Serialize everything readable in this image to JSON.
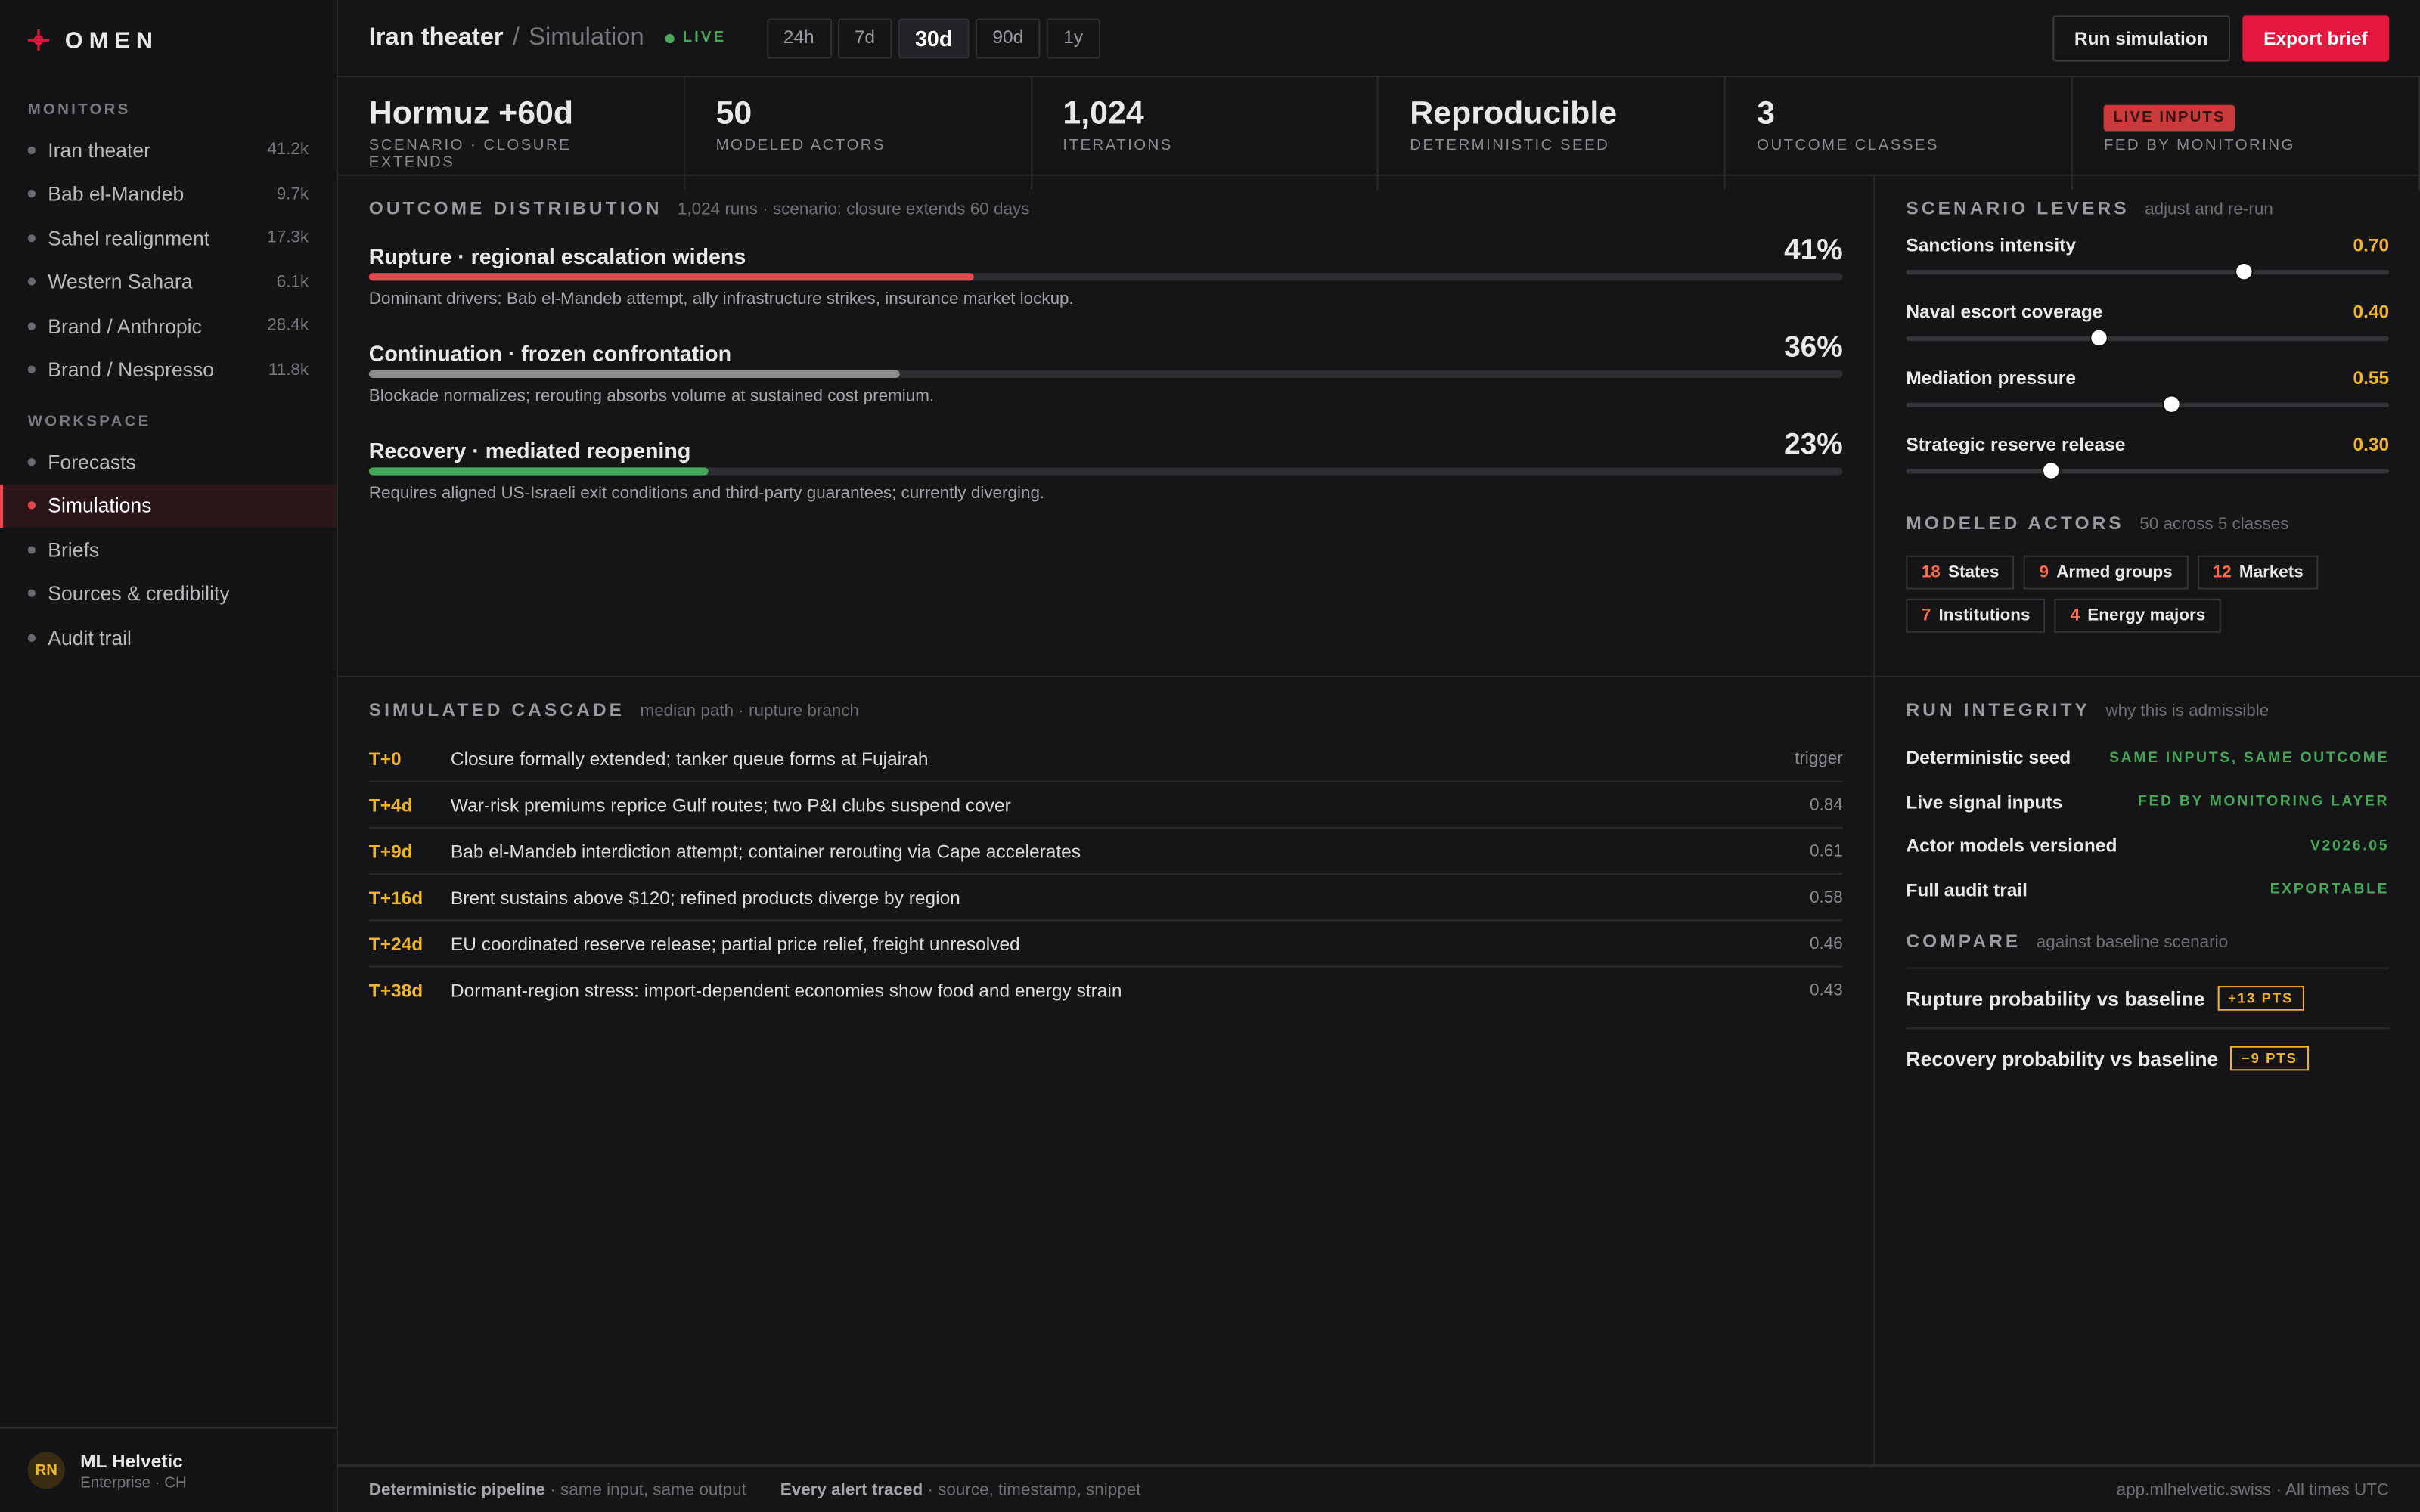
{
  "sidebar": {
    "brand": "OMEN",
    "sections": [
      {
        "title": "MONITORS",
        "items": [
          {
            "label": "Iran theater",
            "count": "41.2k"
          },
          {
            "label": "Bab el-Mandeb",
            "count": "9.7k"
          },
          {
            "label": "Sahel realignment",
            "count": "17.3k"
          },
          {
            "label": "Western Sahara",
            "count": "6.1k"
          },
          {
            "label": "Brand / Anthropic",
            "count": "28.4k"
          },
          {
            "label": "Brand / Nespresso",
            "count": "11.8k"
          }
        ]
      },
      {
        "title": "WORKSPACE",
        "items": [
          {
            "label": "Forecasts"
          },
          {
            "label": "Simulations",
            "active": true
          },
          {
            "label": "Briefs"
          },
          {
            "label": "Sources & credibility"
          },
          {
            "label": "Audit trail"
          }
        ]
      }
    ],
    "user": {
      "initials": "RN",
      "name": "ML Helvetic",
      "org": "Enterprise · CH"
    }
  },
  "header": {
    "title": "Iran theater",
    "separator": "/",
    "subtitle": "Simulation",
    "status": "LIVE",
    "ranges": [
      "24h",
      "7d",
      "30d",
      "90d",
      "1y"
    ],
    "active_range": 2,
    "actions": [
      "Run simulation",
      "Export brief"
    ]
  },
  "kpis": [
    {
      "value": "Hormuz +60d",
      "label": "SCENARIO · CLOSURE EXTENDS"
    },
    {
      "value": "50",
      "label": "MODELED ACTORS"
    },
    {
      "value": "1,024",
      "label": "ITERATIONS"
    },
    {
      "value": "Reproducible",
      "label": "DETERMINISTIC SEED"
    },
    {
      "value": "3",
      "label": "OUTCOME CLASSES"
    },
    {
      "badge": "LIVE INPUTS",
      "label": "FED BY MONITORING"
    }
  ],
  "outcomes": {
    "title": "OUTCOME DISTRIBUTION",
    "note": "1,024 runs · scenario: closure extends 60 days",
    "items": [
      {
        "name": "Rupture · regional escalation widens",
        "share": {
          "value": 41,
          "label": "41%"
        },
        "color": "#e5484d",
        "detail": "Dominant drivers: Bab el-Mandeb attempt, ally infrastructure strikes, insurance market lockup."
      },
      {
        "name": "Continuation · frozen confrontation",
        "share": {
          "value": 36,
          "label": "36%"
        },
        "color": "#8d8d8d",
        "detail": "Blockade normalizes; rerouting absorbs volume at sustained cost premium."
      },
      {
        "name": "Recovery · mediated reopening",
        "share": {
          "value": 23,
          "label": "23%"
        },
        "color": "#46a758",
        "detail": "Requires aligned US-Israeli exit conditions and third-party guarantees; currently diverging."
      }
    ]
  },
  "levers": {
    "title": "SCENARIO LEVERS",
    "note": "adjust and re-run",
    "items": [
      {
        "name": "Sanctions intensity",
        "setting": {
          "value": 0.7,
          "label": "0.70"
        }
      },
      {
        "name": "Naval escort coverage",
        "setting": {
          "value": 0.4,
          "label": "0.40"
        }
      },
      {
        "name": "Mediation pressure",
        "setting": {
          "value": 0.55,
          "label": "0.55"
        }
      },
      {
        "name": "Strategic reserve release",
        "setting": {
          "value": 0.3,
          "label": "0.30"
        }
      }
    ]
  },
  "actors": {
    "title": "MODELED ACTORS",
    "note": "50 across 5 classes",
    "items": [
      {
        "count": "18",
        "label": "States"
      },
      {
        "count": "9",
        "label": "Armed groups"
      },
      {
        "count": "12",
        "label": "Markets"
      },
      {
        "count": "7",
        "label": "Institutions"
      },
      {
        "count": "4",
        "label": "Energy majors"
      }
    ]
  },
  "cascade": {
    "title": "SIMULATED CASCADE",
    "note": "median path · rupture branch",
    "rows": [
      {
        "time": "T+0",
        "event": "Closure formally extended; tanker queue forms at Fujairah",
        "score": "trigger"
      },
      {
        "time": "T+4d",
        "event": "War-risk premiums reprice Gulf routes; two P&I clubs suspend cover",
        "score": "0.84"
      },
      {
        "time": "T+9d",
        "event": "Bab el-Mandeb interdiction attempt; container rerouting via Cape accelerates",
        "score": "0.61"
      },
      {
        "time": "T+16d",
        "event": "Brent sustains above $120; refined products diverge by region",
        "score": "0.58"
      },
      {
        "time": "T+24d",
        "event": "EU coordinated reserve release; partial price relief, freight unresolved",
        "score": "0.46"
      },
      {
        "time": "T+38d",
        "event": "Dormant-region stress: import-dependent economies show food and energy strain",
        "score": "0.43"
      }
    ]
  },
  "integrity": {
    "title": "RUN INTEGRITY",
    "note": "why this is admissible",
    "rows": [
      {
        "label": "Deterministic seed",
        "status": "SAME INPUTS, SAME OUTCOME"
      },
      {
        "label": "Live signal inputs",
        "status": "FED BY MONITORING LAYER"
      },
      {
        "label": "Actor models versioned",
        "status": "V2026.05"
      },
      {
        "label": "Full audit trail",
        "status": "EXPORTABLE"
      }
    ]
  },
  "compare": {
    "title": "COMPARE",
    "note": "against baseline scenario",
    "rows": [
      {
        "label": "Rupture probability vs baseline",
        "delta": "+13 PTS"
      },
      {
        "label": "Recovery probability vs baseline",
        "delta": "−9 PTS"
      }
    ]
  },
  "footer": {
    "items": [
      {
        "strong": "Deterministic pipeline",
        "text": "· same input, same output"
      },
      {
        "strong": "Every alert traced",
        "text": "· source, timestamp, snippet"
      }
    ],
    "right": "app.mlhelvetic.swiss · All times UTC"
  }
}
